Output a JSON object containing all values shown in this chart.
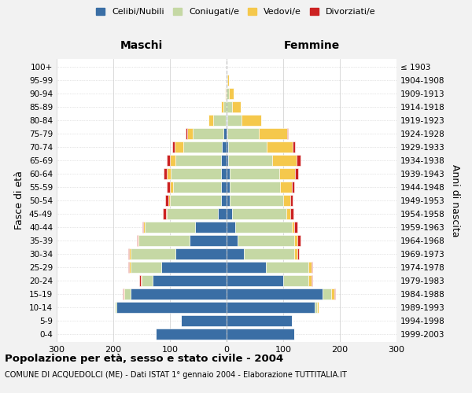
{
  "age_groups": [
    "0-4",
    "5-9",
    "10-14",
    "15-19",
    "20-24",
    "25-29",
    "30-34",
    "35-39",
    "40-44",
    "45-49",
    "50-54",
    "55-59",
    "60-64",
    "65-69",
    "70-74",
    "75-79",
    "80-84",
    "85-89",
    "90-94",
    "95-99",
    "100+"
  ],
  "birth_years": [
    "1999-2003",
    "1994-1998",
    "1989-1993",
    "1984-1988",
    "1979-1983",
    "1974-1978",
    "1969-1973",
    "1964-1968",
    "1959-1963",
    "1954-1958",
    "1949-1953",
    "1944-1948",
    "1939-1943",
    "1934-1938",
    "1929-1933",
    "1924-1928",
    "1919-1923",
    "1914-1918",
    "1909-1913",
    "1904-1908",
    "≤ 1903"
  ],
  "colors": {
    "celibe": "#3A6EA5",
    "coniugato": "#C5D8A4",
    "vedovo": "#F5C84C",
    "divorziato": "#CC2222"
  },
  "maschi": {
    "celibe": [
      125,
      80,
      195,
      170,
      130,
      115,
      90,
      65,
      55,
      15,
      10,
      10,
      10,
      10,
      8,
      5,
      2,
      0,
      0,
      0,
      0
    ],
    "coniugato": [
      0,
      0,
      2,
      10,
      20,
      55,
      80,
      90,
      90,
      90,
      90,
      85,
      88,
      80,
      68,
      55,
      22,
      5,
      2,
      0,
      0
    ],
    "vedovo": [
      0,
      0,
      0,
      2,
      2,
      2,
      2,
      2,
      2,
      2,
      3,
      5,
      8,
      10,
      15,
      10,
      8,
      5,
      1,
      0,
      0
    ],
    "divorziato": [
      0,
      0,
      0,
      2,
      2,
      2,
      2,
      2,
      2,
      5,
      5,
      5,
      5,
      5,
      5,
      2,
      0,
      0,
      0,
      0,
      0
    ]
  },
  "femmine": {
    "nubile": [
      120,
      115,
      155,
      170,
      100,
      70,
      30,
      20,
      15,
      10,
      5,
      5,
      5,
      3,
      3,
      2,
      1,
      0,
      0,
      0,
      0
    ],
    "coniugata": [
      0,
      0,
      5,
      15,
      45,
      75,
      90,
      100,
      100,
      95,
      95,
      90,
      88,
      78,
      68,
      55,
      25,
      10,
      4,
      2,
      0
    ],
    "vedova": [
      0,
      0,
      2,
      5,
      5,
      5,
      5,
      5,
      5,
      8,
      12,
      20,
      28,
      42,
      45,
      50,
      35,
      15,
      8,
      2,
      0
    ],
    "divorziata": [
      0,
      0,
      0,
      2,
      2,
      2,
      3,
      5,
      5,
      5,
      5,
      5,
      5,
      8,
      5,
      2,
      0,
      0,
      0,
      0,
      0
    ]
  },
  "xlim": 300,
  "title": "Popolazione per età, sesso e stato civile - 2004",
  "subtitle": "COMUNE DI ACQUEDOLCI (ME) - Dati ISTAT 1° gennaio 2004 - Elaborazione TUTTITALIA.IT",
  "ylabel_left": "Fasce di età",
  "ylabel_right": "Anni di nascita",
  "xlabel_left": "Maschi",
  "xlabel_right": "Femmine",
  "bg_color": "#F2F2F2",
  "plot_bg_color": "#FFFFFF",
  "legend_labels": [
    "Celibi/Nubili",
    "Coniugati/e",
    "Vedovi/e",
    "Divorziati/e"
  ]
}
